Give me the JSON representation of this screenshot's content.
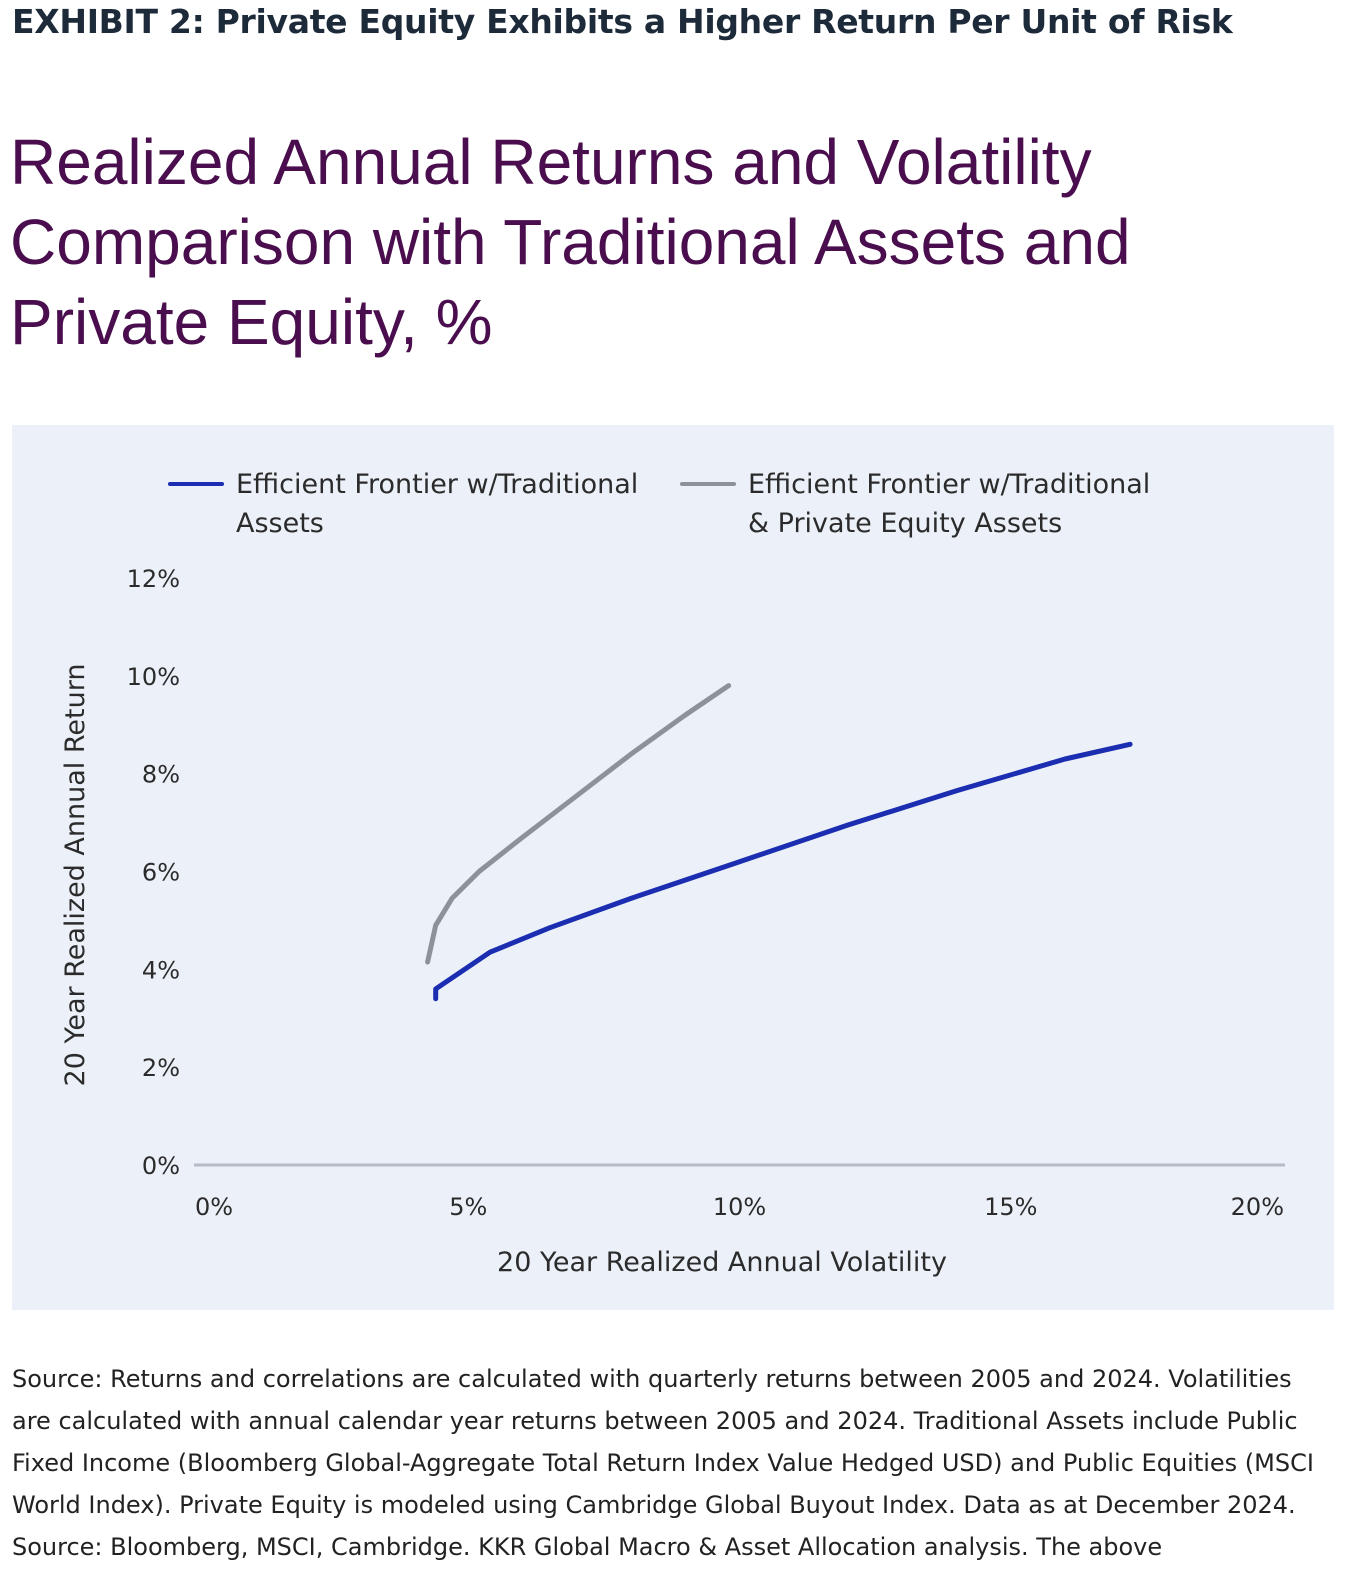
{
  "header": {
    "exhibit_title": "EXHIBIT 2: Private Equity Exhibits a Higher Return Per Unit of Risk",
    "chart_title": "Realized Annual Returns and Volatility Comparison with Traditional Assets and Private Equity, %"
  },
  "colors": {
    "panel_background": "#ecf1f9",
    "traditional": "#1b2db0",
    "private_equity": "#8c9299",
    "axis": "#b5bcc8",
    "title": "#4a0d4e"
  },
  "chart_data": {
    "type": "line",
    "xlabel": "20 Year Realized Annual Volatility",
    "ylabel": "20 Year Realized Annual Return",
    "xlim": [
      0,
      20
    ],
    "ylim": [
      0,
      12
    ],
    "x_ticks": [
      "0%",
      "5%",
      "10%",
      "15%",
      "20%"
    ],
    "x_tick_values": [
      0,
      5,
      10,
      15,
      20
    ],
    "y_ticks": [
      "0%",
      "2%",
      "4%",
      "6%",
      "8%",
      "10%",
      "12%"
    ],
    "y_tick_values": [
      0,
      2,
      4,
      6,
      8,
      10,
      12
    ],
    "grid": false,
    "legend_position": "top",
    "series": [
      {
        "name": "Efficient Frontier w/Traditional Assets",
        "legend_lines": [
          "Efficient Frontier w/Traditional",
          "Assets"
        ],
        "color": "#1b2db0",
        "points": [
          [
            4.4,
            3.4
          ],
          [
            4.4,
            3.6
          ],
          [
            5.4,
            4.35
          ],
          [
            6.5,
            4.85
          ],
          [
            8.0,
            5.45
          ],
          [
            10.0,
            6.2
          ],
          [
            12.0,
            6.95
          ],
          [
            14.0,
            7.65
          ],
          [
            16.0,
            8.3
          ],
          [
            17.2,
            8.6
          ]
        ]
      },
      {
        "name": "Efficient Frontier w/Traditional & Private Equity Assets",
        "legend_lines": [
          "Efficient Frontier w/Traditional",
          "& Private Equity Assets"
        ],
        "color": "#8c9299",
        "points": [
          [
            4.25,
            4.15
          ],
          [
            4.4,
            4.9
          ],
          [
            4.7,
            5.45
          ],
          [
            5.2,
            6.0
          ],
          [
            6.0,
            6.7
          ],
          [
            7.0,
            7.55
          ],
          [
            8.0,
            8.4
          ],
          [
            9.0,
            9.2
          ],
          [
            9.8,
            9.8
          ]
        ]
      }
    ]
  },
  "footer": {
    "source_note": "Source: Returns and correlations are calculated with quarterly returns between 2005 and 2024. Volatilities are calculated with annual calendar year returns between 2005 and 2024. Traditional Assets include Public Fixed Income (Bloomberg Global-Aggregate Total Return Index Value Hedged USD) and Public Equities (MSCI World Index). Private Equity is modeled using Cambridge Global Buyout Index. Data as at December 2024. Source: Bloomberg, MSCI, Cambridge. KKR Global Macro & Asset Allocation analysis. The above"
  }
}
